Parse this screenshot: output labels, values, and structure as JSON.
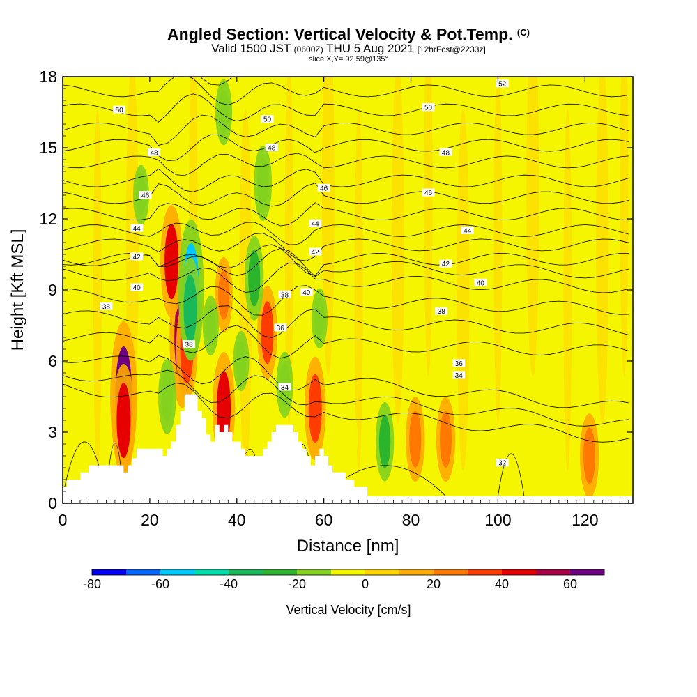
{
  "chart_data": {
    "type": "heatmap",
    "title": "Angled Section: Vertical Velocity & Pot.Temp.",
    "title_suffix": "(C)",
    "subtitle_parts": [
      "Valid 1500 JST",
      "(0600Z)",
      "THU 5 Aug 2021",
      "[12hrFcst@2233z]"
    ],
    "slice_label": "slice X,Y= 92,59@135°",
    "xlabel": "Distance [nm]",
    "ylabel": "Height [Kft MSL]",
    "xlim": [
      0,
      131
    ],
    "ylim": [
      0,
      18
    ],
    "xticks": [
      0,
      20,
      40,
      60,
      80,
      100,
      120
    ],
    "yticks": [
      0,
      3,
      6,
      9,
      12,
      15,
      18
    ],
    "colorbar": {
      "label": "Vertical Velocity [cm/s]",
      "ticks": [
        -80,
        -60,
        -40,
        -20,
        0,
        20,
        40,
        60
      ],
      "range": [
        -80,
        70
      ],
      "colors": [
        "#0000ee",
        "#0066ff",
        "#00c8ff",
        "#00dcaa",
        "#19b95a",
        "#2db42d",
        "#82d21e",
        "#f5f500",
        "#ffd200",
        "#ffaa00",
        "#ff7800",
        "#ff3c00",
        "#e60000",
        "#aa0046",
        "#6e0082"
      ]
    },
    "theta_contours": {
      "units": "C",
      "labeled_levels": [
        32,
        34,
        36,
        38,
        40,
        42,
        44,
        46,
        48,
        50,
        52
      ],
      "interval": 1
    },
    "terrain": {
      "description": "terrain profile (kft)",
      "x": [
        0,
        1,
        2,
        4,
        5,
        6,
        7,
        8,
        10,
        11,
        12,
        13,
        14,
        15,
        16,
        17,
        18,
        19,
        22,
        23,
        24,
        25,
        26,
        27,
        28,
        29,
        30,
        31,
        32,
        33,
        34,
        35,
        36,
        37,
        38,
        39,
        40,
        41,
        42,
        43,
        44,
        45,
        46,
        47,
        48,
        49,
        50,
        51,
        52,
        53,
        54,
        55,
        56,
        57,
        58,
        59,
        60,
        61,
        62,
        63,
        64,
        65,
        66,
        67,
        68,
        69,
        70,
        71,
        72,
        73,
        131
      ],
      "y": [
        0.7,
        1.0,
        1.0,
        1.3,
        1.3,
        1.6,
        1.6,
        1.6,
        1.6,
        1.6,
        1.6,
        1.6,
        1.3,
        1.6,
        1.9,
        2.3,
        2.3,
        2.3,
        2.3,
        2.0,
        2.3,
        2.6,
        3.3,
        3.9,
        4.6,
        4.6,
        4.6,
        3.9,
        3.6,
        2.9,
        2.6,
        3.3,
        3.0,
        3.3,
        3.0,
        2.6,
        2.6,
        2.3,
        2.0,
        2.0,
        2.0,
        2.0,
        2.3,
        2.6,
        3.0,
        3.3,
        3.3,
        3.3,
        3.3,
        3.0,
        2.6,
        2.3,
        2.0,
        1.6,
        2.0,
        2.3,
        2.0,
        1.6,
        1.3,
        1.3,
        1.3,
        1.0,
        1.0,
        0.7,
        0.7,
        0.7,
        0.3,
        0.3,
        0.3,
        0.3,
        0.3
      ]
    },
    "cells": [
      {
        "x": 14,
        "y": 4.5,
        "value": 60
      },
      {
        "x": 14,
        "y": 3.5,
        "value": 40
      },
      {
        "x": 27.5,
        "y": 7.0,
        "value": 55
      },
      {
        "x": 28.5,
        "y": 6.5,
        "value": 35
      },
      {
        "x": 25,
        "y": 10.2,
        "value": 40
      },
      {
        "x": 37,
        "y": 4.0,
        "value": 40
      },
      {
        "x": 37,
        "y": 8.8,
        "value": 20
      },
      {
        "x": 47,
        "y": 7.2,
        "value": 30
      },
      {
        "x": 58,
        "y": 4.0,
        "value": 35
      },
      {
        "x": 81,
        "y": 2.7,
        "value": 25
      },
      {
        "x": 88,
        "y": 2.7,
        "value": 25
      },
      {
        "x": 121,
        "y": 2.0,
        "value": 25
      },
      {
        "x": 29.5,
        "y": 9.0,
        "value": -55
      },
      {
        "x": 29.3,
        "y": 8.2,
        "value": -35
      },
      {
        "x": 44,
        "y": 9.5,
        "value": -25
      },
      {
        "x": 46,
        "y": 13.5,
        "value": -20
      },
      {
        "x": 37,
        "y": 16.5,
        "value": -15
      },
      {
        "x": 18,
        "y": 13.0,
        "value": -12
      },
      {
        "x": 74,
        "y": 2.6,
        "value": -22
      },
      {
        "x": 66,
        "y": 2.8,
        "value": -10
      },
      {
        "x": 5,
        "y": 7.0,
        "value": -10
      },
      {
        "x": 24,
        "y": 4.5,
        "value": -20
      },
      {
        "x": 59,
        "y": 7.8,
        "value": -12
      },
      {
        "x": 51,
        "y": 5.0,
        "value": -15
      },
      {
        "x": 103,
        "y": 2.0,
        "value": -10
      },
      {
        "x": 110,
        "y": 3.0,
        "value": -10
      },
      {
        "x": 41,
        "y": 6.0,
        "value": -12
      },
      {
        "x": 34,
        "y": 7.5,
        "value": -12
      }
    ]
  }
}
